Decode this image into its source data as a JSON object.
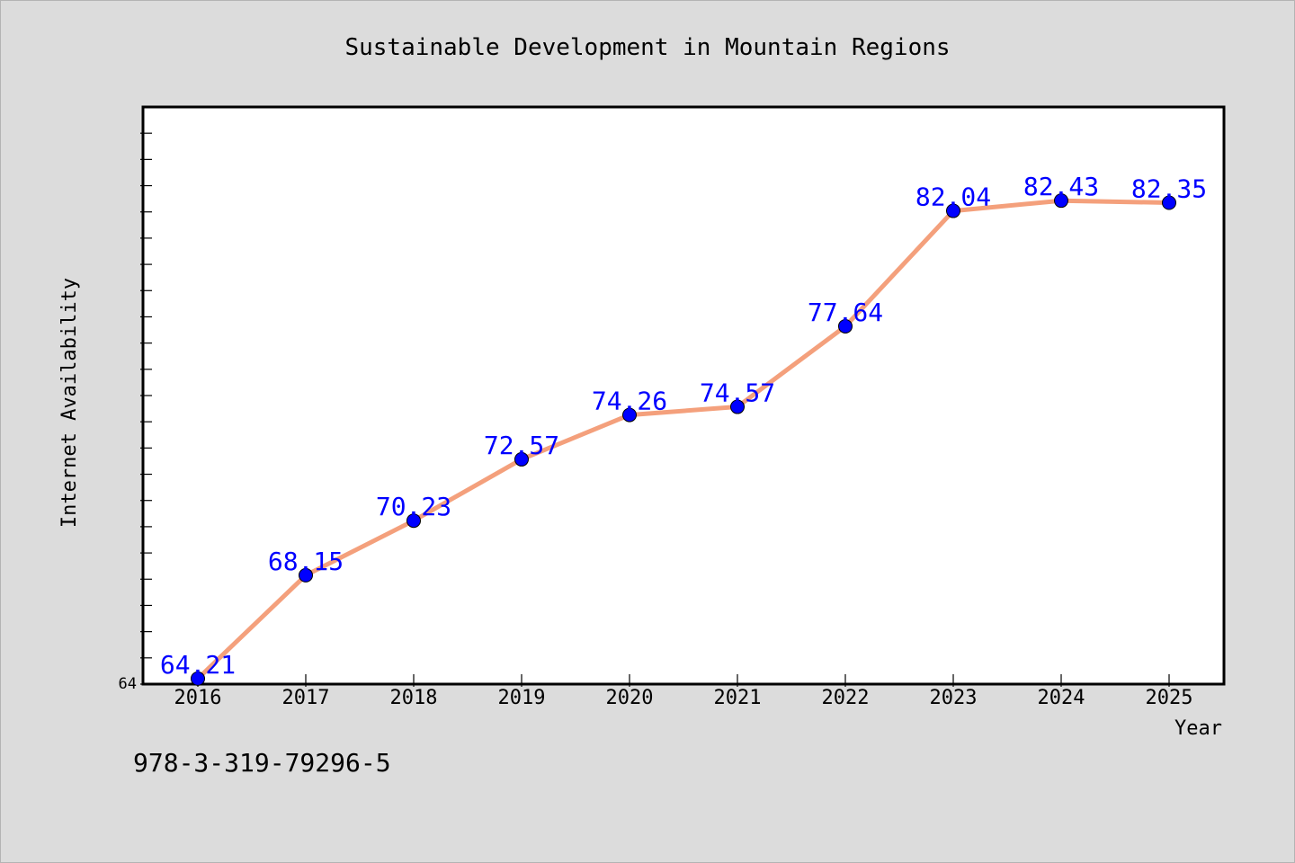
{
  "chart_data": {
    "type": "line",
    "title": "Sustainable Development in Mountain Regions",
    "xlabel": "Year",
    "ylabel": "Internet Availability",
    "categories": [
      "2016",
      "2017",
      "2018",
      "2019",
      "2020",
      "2021",
      "2022",
      "2023",
      "2024",
      "2025"
    ],
    "series": [
      {
        "values": [
          64.21,
          68.15,
          70.23,
          72.57,
          74.26,
          74.57,
          77.64,
          82.04,
          82.43,
          82.35
        ],
        "labels": [
          "64.21",
          "68.15",
          "70.23",
          "72.57",
          "74.26",
          "74.57",
          "77.64",
          "82.04",
          "82.43",
          "82.35"
        ],
        "line_color": "#f4a07c",
        "marker_color": "#0000ff"
      }
    ],
    "y_tick_labels": [
      "64"
    ],
    "ylim": [
      64,
      86
    ],
    "grid": false,
    "legend": "none"
  },
  "footnote": "978-3-319-79296-5",
  "colors": {
    "background": "#dcdcdc",
    "plot_background": "#ffffff",
    "axis": "#000000",
    "data_label": "#0000ff"
  }
}
